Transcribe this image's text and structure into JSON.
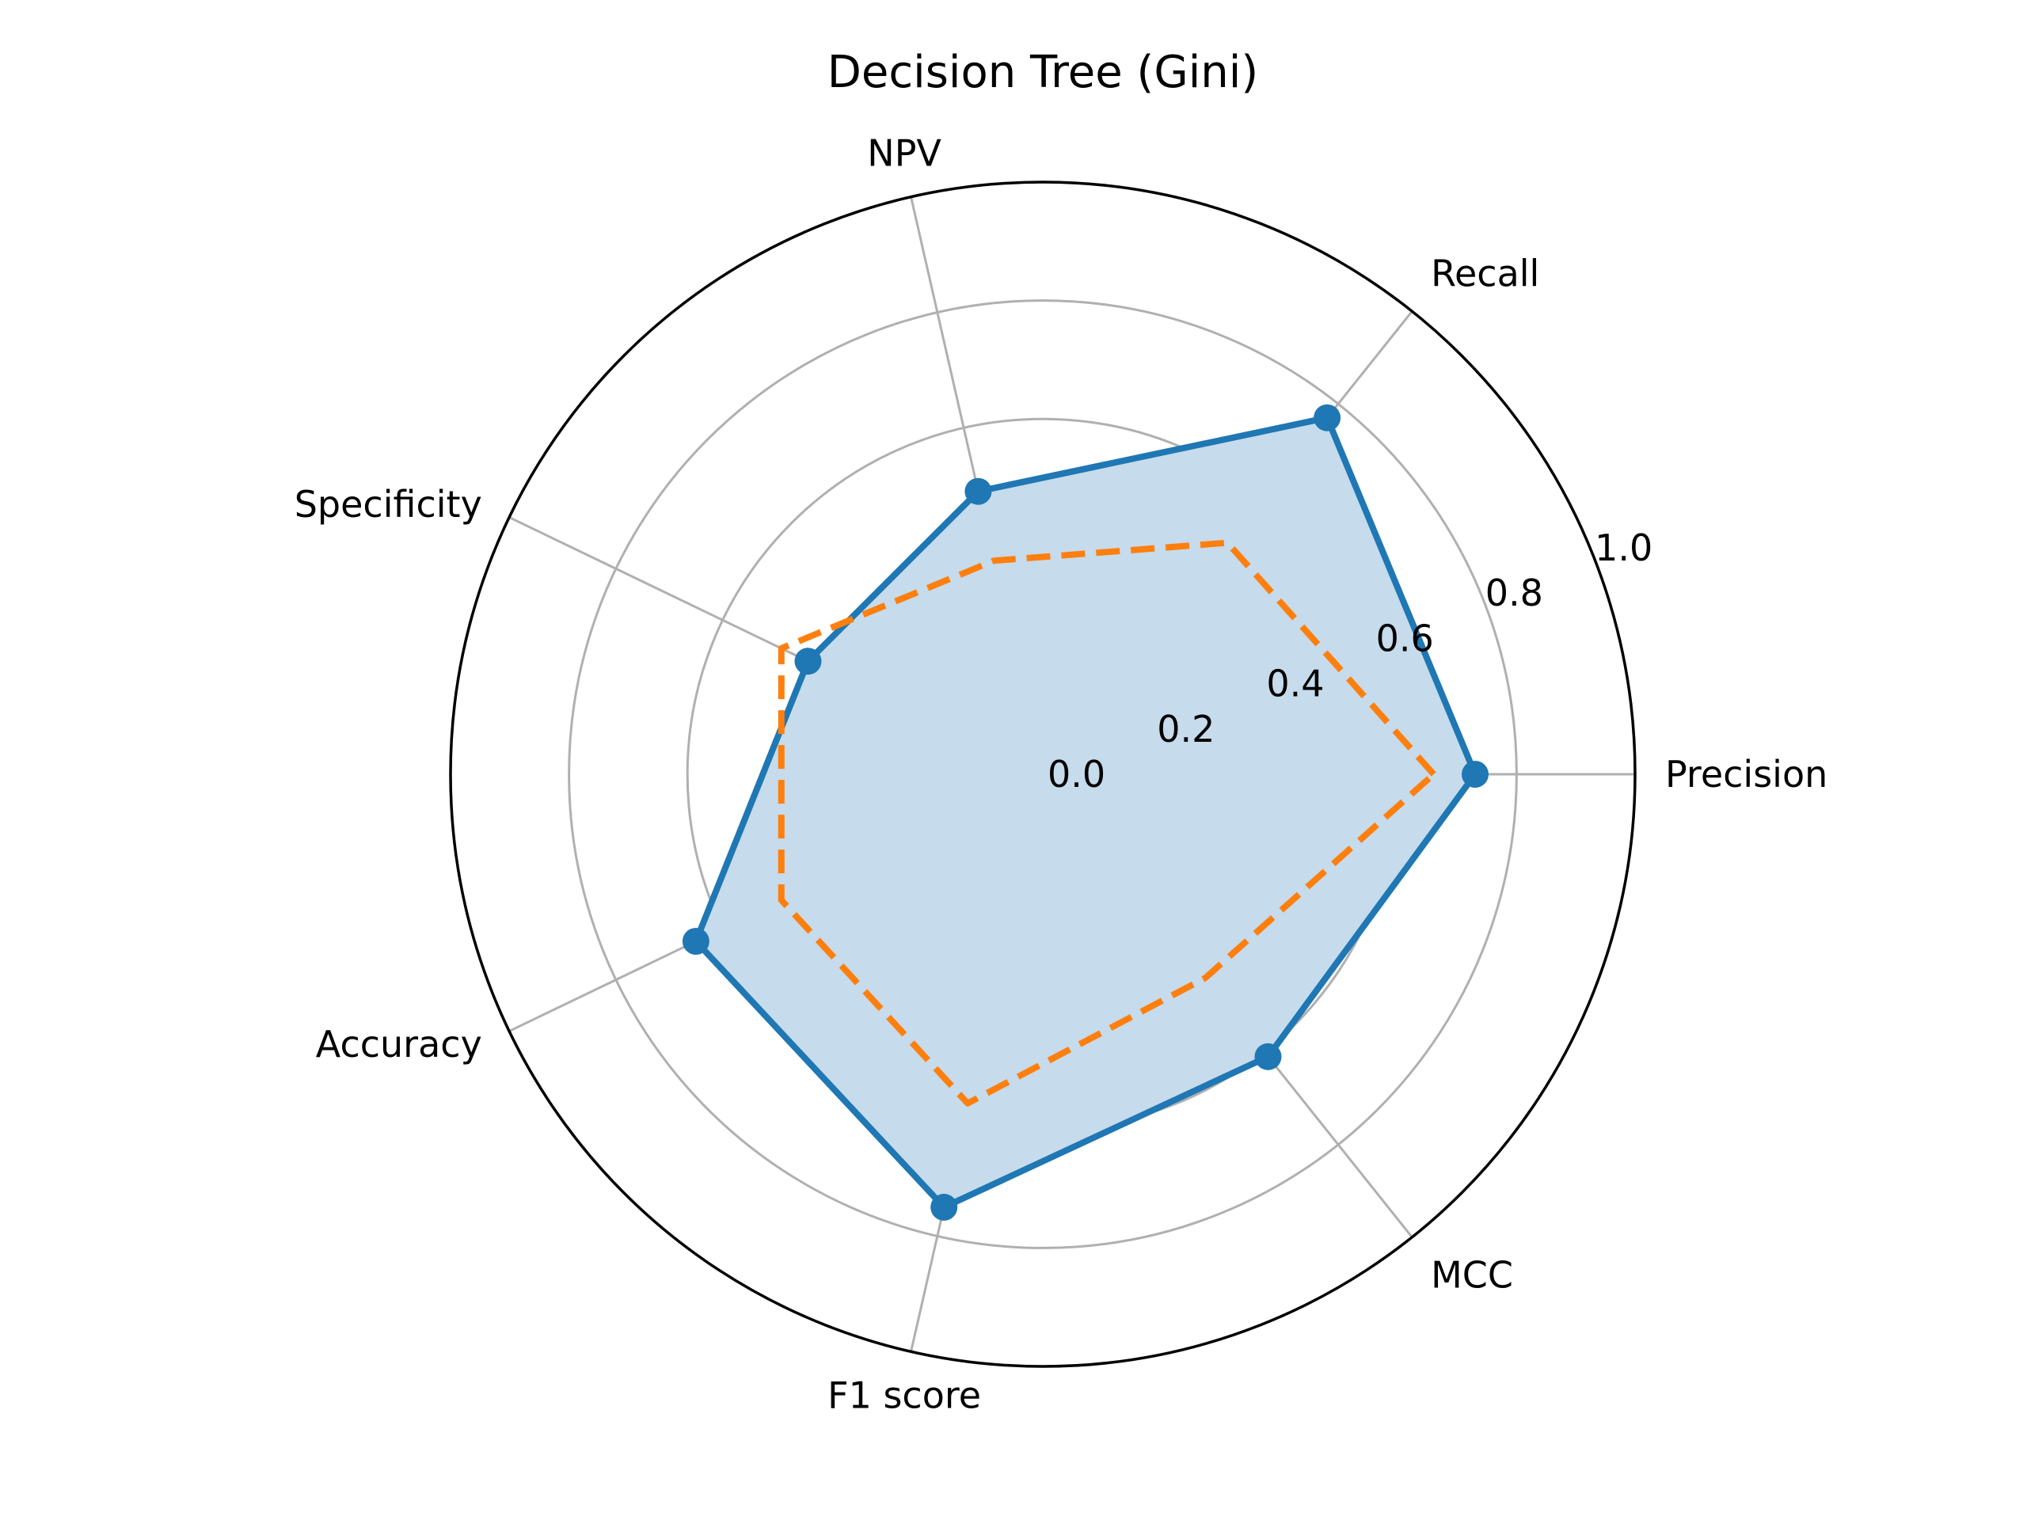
{
  "chart_data": {
    "type": "radar",
    "title": "Decision Tree (Gini)",
    "categories": [
      "Precision",
      "Recall",
      "NPV",
      "Specificity",
      "Accuracy",
      "F1 score",
      "MCC"
    ],
    "rlim": [
      0,
      1.0
    ],
    "rticks": [
      0.0,
      0.2,
      0.4,
      0.6,
      0.8,
      1.0
    ],
    "rtick_labels": [
      "0.0",
      "0.2",
      "0.4",
      "0.6",
      "0.8",
      "1.0"
    ],
    "grid": true,
    "series": [
      {
        "values": [
          0.73,
          0.77,
          0.49,
          0.44,
          0.65,
          0.75,
          0.61
        ],
        "color": "#1f77b4",
        "line_style": "solid",
        "markers": true,
        "fill": true,
        "fill_color": "#c6dbeb"
      },
      {
        "values": [
          0.66,
          0.5,
          0.37,
          0.49,
          0.49,
          0.57,
          0.44
        ],
        "color": "#ff7f0e",
        "line_style": "dashed",
        "markers": false,
        "fill": false
      }
    ]
  }
}
